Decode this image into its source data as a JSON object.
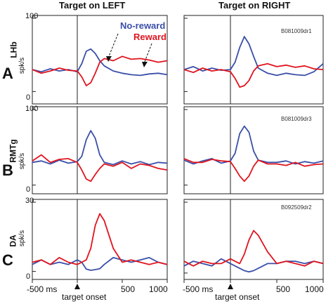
{
  "figure": {
    "col_left": "Target on LEFT",
    "col_right": "Target on RIGHT",
    "rows": [
      {
        "letter": "A",
        "region": "LHb",
        "unit": "spk/s",
        "ymax": "100",
        "ymin": "0",
        "cell": "B081009dr1"
      },
      {
        "letter": "B",
        "region": "RMTg",
        "unit": "spk/s",
        "ymax": "100",
        "ymin": "0",
        "cell": "B081009dr3"
      },
      {
        "letter": "C",
        "region": "DA",
        "unit": "spk/s",
        "ymax": "30",
        "ymin": "0",
        "cell": "B092509dr2"
      }
    ],
    "legend": {
      "no_reward": "No-reward",
      "reward": "Reward"
    },
    "xticks": [
      "-500 ms",
      "0",
      "500",
      "1000"
    ],
    "onset_label": "target onset",
    "colors": {
      "no_reward": "#3a4fa8",
      "reward": "#e0141e",
      "axis": "#222222"
    }
  },
  "chart_data": [
    {
      "panel": "A-left",
      "type": "line",
      "title": "Target on LEFT",
      "ylabel": "spk/s",
      "xlim": [
        -500,
        1000
      ],
      "ylim": [
        0,
        100
      ],
      "x": [
        -500,
        -400,
        -300,
        -200,
        -100,
        0,
        50,
        100,
        150,
        200,
        250,
        300,
        400,
        500,
        600,
        700,
        800,
        900,
        1000
      ],
      "series": [
        {
          "name": "No-reward",
          "values": [
            30,
            27,
            31,
            28,
            30,
            27,
            38,
            55,
            58,
            52,
            42,
            35,
            28,
            25,
            23,
            22,
            24,
            25,
            23
          ]
        },
        {
          "name": "Reward",
          "values": [
            30,
            25,
            28,
            32,
            29,
            28,
            20,
            8,
            12,
            25,
            40,
            45,
            42,
            48,
            44,
            45,
            43,
            40,
            42
          ]
        }
      ]
    },
    {
      "panel": "A-right",
      "type": "line",
      "title": "Target on RIGHT",
      "ylabel": "spk/s",
      "xlim": [
        -500,
        1000
      ],
      "ylim": [
        0,
        100
      ],
      "x": [
        -500,
        -400,
        -300,
        -200,
        -100,
        0,
        50,
        100,
        150,
        200,
        250,
        300,
        400,
        500,
        600,
        700,
        800,
        900,
        1000
      ],
      "series": [
        {
          "name": "No-reward",
          "values": [
            30,
            34,
            28,
            32,
            29,
            30,
            40,
            60,
            75,
            65,
            48,
            32,
            25,
            22,
            25,
            23,
            22,
            27,
            38
          ]
        },
        {
          "name": "Reward",
          "values": [
            30,
            26,
            32,
            28,
            30,
            27,
            18,
            6,
            8,
            15,
            28,
            35,
            38,
            34,
            36,
            33,
            35,
            31,
            30
          ]
        }
      ]
    },
    {
      "panel": "B-left",
      "type": "line",
      "ylabel": "spk/s",
      "xlim": [
        -500,
        1000
      ],
      "ylim": [
        0,
        100
      ],
      "x": [
        -500,
        -400,
        -300,
        -200,
        -100,
        0,
        50,
        100,
        150,
        200,
        250,
        300,
        400,
        500,
        600,
        700,
        800,
        900,
        1000
      ],
      "series": [
        {
          "name": "No-reward",
          "values": [
            30,
            32,
            28,
            33,
            29,
            31,
            38,
            60,
            72,
            62,
            40,
            30,
            27,
            32,
            28,
            31,
            27,
            30,
            29
          ]
        },
        {
          "name": "Reward",
          "values": [
            32,
            40,
            30,
            34,
            35,
            30,
            20,
            8,
            5,
            14,
            22,
            28,
            25,
            30,
            22,
            28,
            26,
            22,
            20
          ]
        }
      ]
    },
    {
      "panel": "B-right",
      "type": "line",
      "ylabel": "spk/s",
      "xlim": [
        -500,
        1000
      ],
      "ylim": [
        0,
        100
      ],
      "x": [
        -500,
        -400,
        -300,
        -200,
        -100,
        0,
        50,
        100,
        150,
        200,
        250,
        300,
        400,
        500,
        600,
        700,
        800,
        900,
        1000
      ],
      "series": [
        {
          "name": "No-reward",
          "values": [
            33,
            28,
            32,
            35,
            29,
            32,
            42,
            68,
            78,
            70,
            45,
            33,
            30,
            30,
            32,
            28,
            31,
            29,
            32
          ]
        },
        {
          "name": "Reward",
          "values": [
            35,
            30,
            30,
            34,
            32,
            31,
            22,
            12,
            5,
            12,
            25,
            33,
            28,
            28,
            26,
            30,
            25,
            27,
            28
          ]
        }
      ]
    },
    {
      "panel": "C-left",
      "type": "line",
      "ylabel": "spk/s",
      "xlim": [
        -500,
        1000
      ],
      "ylim": [
        0,
        30
      ],
      "x": [
        -500,
        -400,
        -300,
        -200,
        -100,
        0,
        50,
        100,
        150,
        200,
        250,
        300,
        400,
        500,
        600,
        700,
        800,
        900,
        1000
      ],
      "series": [
        {
          "name": "No-reward",
          "values": [
            3,
            5,
            3,
            4,
            3,
            5,
            4,
            1,
            0.5,
            0.8,
            1.2,
            3,
            6,
            5,
            4,
            5,
            6,
            4,
            3
          ]
        },
        {
          "name": "Reward",
          "values": [
            4,
            5,
            3,
            6,
            4,
            3,
            4,
            5,
            10,
            20,
            25,
            22,
            10,
            4,
            5,
            4,
            3,
            4,
            3
          ]
        }
      ]
    },
    {
      "panel": "C-right",
      "type": "line",
      "ylabel": "spk/s",
      "xlim": [
        -500,
        1000
      ],
      "ylim": [
        0,
        30
      ],
      "x": [
        -500,
        -400,
        -300,
        -200,
        -100,
        0,
        50,
        100,
        150,
        200,
        250,
        300,
        400,
        500,
        600,
        700,
        800,
        900,
        1000
      ],
      "series": [
        {
          "name": "No-reward",
          "values": [
            3,
            5,
            4,
            3,
            6,
            4,
            3,
            2,
            1,
            0.5,
            1,
            2,
            4,
            4,
            5,
            5,
            4,
            5,
            4
          ]
        },
        {
          "name": "Reward",
          "values": [
            5,
            3,
            5,
            4,
            4,
            6,
            5,
            4,
            8,
            14,
            18,
            16,
            9,
            4,
            5,
            4,
            3,
            5,
            4
          ]
        }
      ]
    }
  ]
}
